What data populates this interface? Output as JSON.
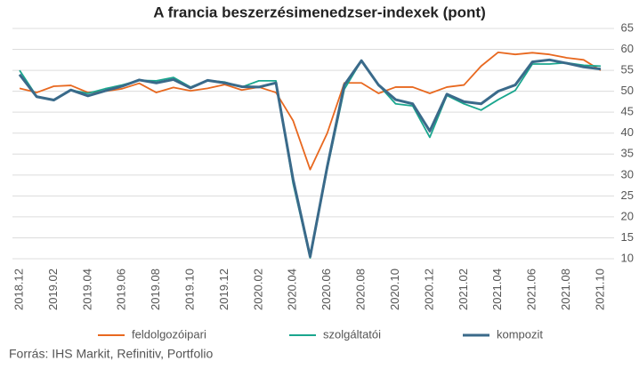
{
  "chart_data": {
    "type": "line",
    "title": "A francia beszerzésimenedzser-indexek (pont)",
    "source": "Forrás: IHS Markit, Refinitiv, Portfolio",
    "categories": [
      "2018.12",
      null,
      "2019.02",
      null,
      "2019.04",
      null,
      "2019.06",
      null,
      "2019.08",
      null,
      "2019.10",
      null,
      "2019.12",
      null,
      "2020.02",
      null,
      "2020.04",
      null,
      "2020.06",
      null,
      "2020.08",
      null,
      "2020.10",
      null,
      "2020.12",
      null,
      "2021.02",
      null,
      "2021.04",
      null,
      "2021.06",
      null,
      "2021.08",
      null,
      "2021.10"
    ],
    "series": [
      {
        "name": "feldolgozóipari",
        "color": "#e8681f",
        "values": [
          50.7,
          49.7,
          51.2,
          51.4,
          49.7,
          50.0,
          50.6,
          51.9,
          49.7,
          50.9,
          50.1,
          50.7,
          51.6,
          50.3,
          51.0,
          49.7,
          43.0,
          31.3,
          40.0,
          52.0,
          52.0,
          49.5,
          51.0,
          51.0,
          49.5,
          51.0,
          51.5,
          56.0,
          59.3,
          58.8,
          59.2,
          58.8,
          58.0,
          57.5,
          55.0
        ]
      },
      {
        "name": "szolgáltatói",
        "color": "#1aa68e",
        "values": [
          55.0,
          48.8,
          47.8,
          50.3,
          49.5,
          50.6,
          51.5,
          52.6,
          52.5,
          53.3,
          51.0,
          52.6,
          52.2,
          51.0,
          52.5,
          52.5,
          28.0,
          10.2,
          31.5,
          50.5,
          57.3,
          51.5,
          47.0,
          46.5,
          39.0,
          49.0,
          47.0,
          45.5,
          48.0,
          50.2,
          56.5,
          56.5,
          56.8,
          56.2,
          56.0
        ]
      },
      {
        "name": "kompozit",
        "color": "#3a6a8a",
        "values": [
          54.0,
          48.7,
          47.9,
          50.3,
          48.9,
          50.1,
          51.2,
          52.7,
          52.0,
          52.8,
          50.8,
          52.6,
          52.0,
          51.1,
          51.0,
          52.0,
          29.0,
          10.5,
          32.0,
          51.5,
          57.3,
          51.5,
          48.0,
          47.0,
          40.5,
          49.3,
          47.5,
          47.0,
          50.0,
          51.5,
          57.0,
          57.5,
          56.7,
          55.8,
          55.3
        ]
      }
    ],
    "ylim": [
      10,
      65
    ],
    "yticks": [
      10,
      15,
      20,
      25,
      30,
      35,
      40,
      45,
      50,
      55,
      60,
      65
    ],
    "grid": true
  }
}
